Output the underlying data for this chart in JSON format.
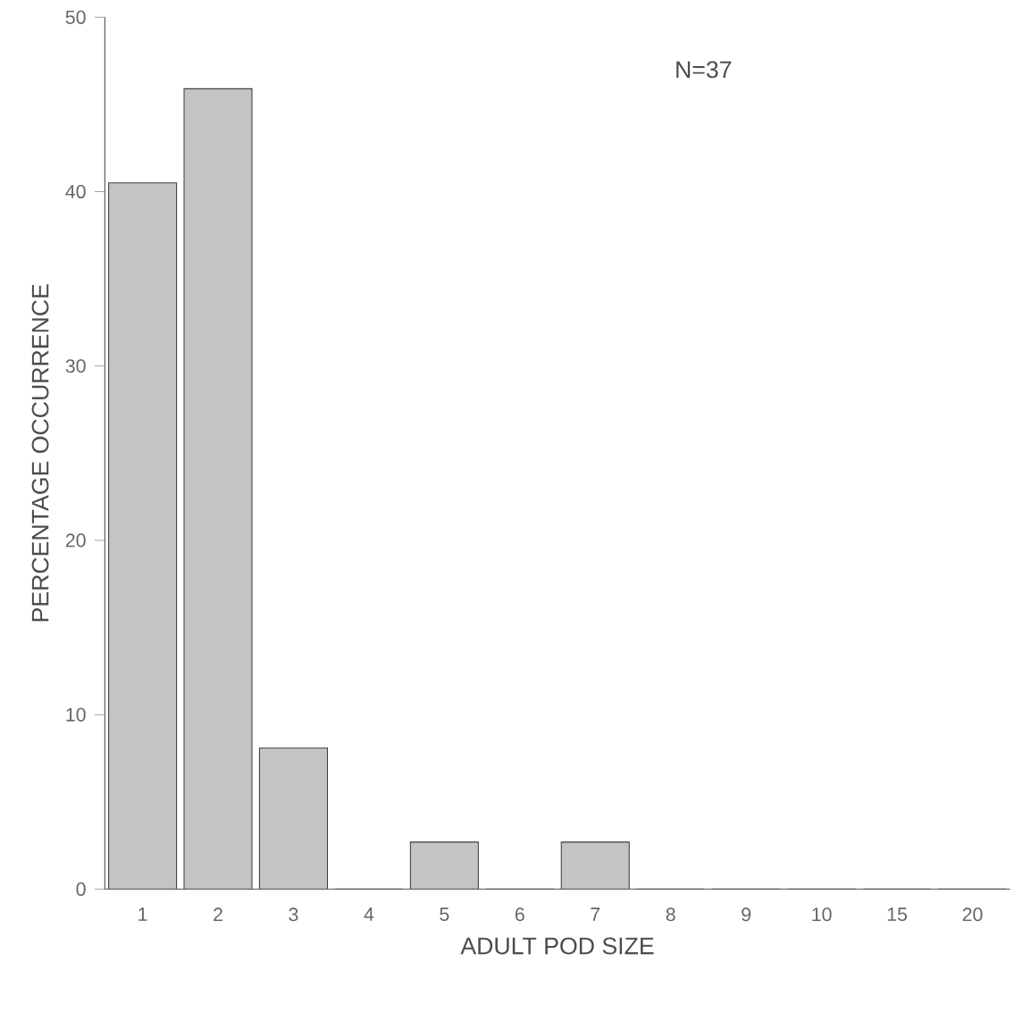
{
  "chart_data": {
    "type": "bar",
    "xlabel": "ADULT POD SIZE",
    "ylabel": "PERCENTAGE OCCURRENCE",
    "annotations": [
      "N=37"
    ],
    "categories": [
      "1",
      "2",
      "3",
      "4",
      "5",
      "6",
      "7",
      "8",
      "9",
      "10",
      "15",
      "20"
    ],
    "values": [
      40.5,
      45.9,
      8.1,
      0,
      2.7,
      0,
      2.7,
      0,
      0,
      0,
      0,
      0
    ],
    "color": "#c4c4c4",
    "ylim": [
      0,
      50
    ],
    "yticks": [
      0,
      10,
      20,
      30,
      40,
      50
    ]
  }
}
